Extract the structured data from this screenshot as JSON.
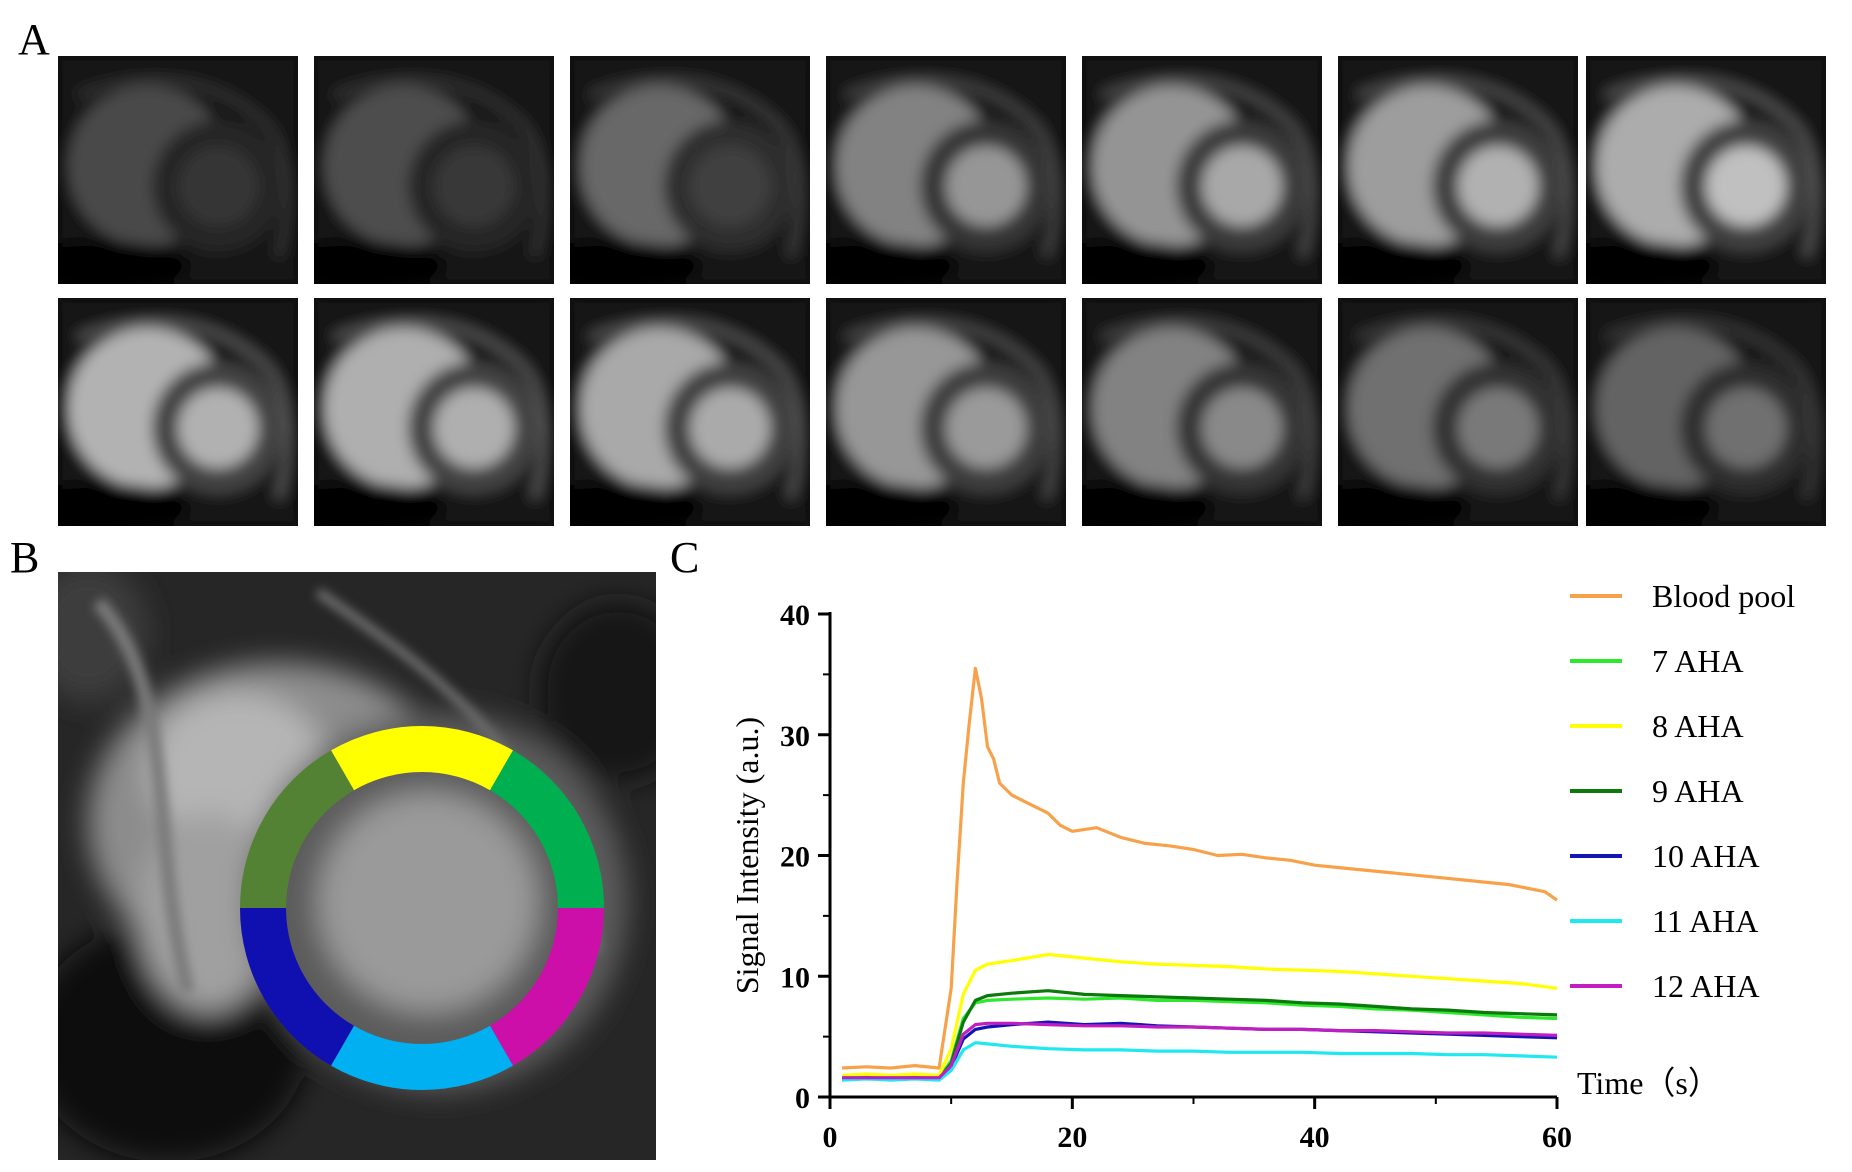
{
  "panels": {
    "a": "A",
    "b": "B",
    "c": "C"
  },
  "panel_a": {
    "frame_brightness": [
      0.22,
      0.25,
      0.42,
      0.6,
      0.72,
      0.78,
      0.88,
      0.92,
      0.9,
      0.86,
      0.74,
      0.6,
      0.48,
      0.4
    ]
  },
  "panel_b": {
    "segments": [
      {
        "name": "yellow",
        "color": "#ffff00"
      },
      {
        "name": "green",
        "color": "#00b050"
      },
      {
        "name": "magenta",
        "color": "#cc0fa8"
      },
      {
        "name": "light-blue",
        "color": "#00b0f0"
      },
      {
        "name": "blue",
        "color": "#1010b0"
      },
      {
        "name": "olive-green",
        "color": "#548235"
      }
    ]
  },
  "chart_data": {
    "type": "line",
    "title": "",
    "xlabel": "Time（s）",
    "ylabel": "Signal Intensity (a.u.)",
    "xlim": [
      0,
      60
    ],
    "ylim": [
      0,
      40
    ],
    "xticks": [
      "0",
      "20",
      "40",
      "60"
    ],
    "yticks": [
      "0",
      "10",
      "20",
      "30",
      "40"
    ],
    "legend_position": "right",
    "series": [
      {
        "name": "Blood pool",
        "color": "#f7a24a",
        "x": [
          1,
          3,
          5,
          7,
          9,
          10,
          10.5,
          11,
          11.5,
          12,
          12.5,
          13,
          13.5,
          14,
          15,
          16,
          17,
          18,
          19,
          20,
          22,
          24,
          26,
          28,
          30,
          32,
          34,
          36,
          38,
          40,
          42,
          44,
          46,
          48,
          50,
          52,
          54,
          56,
          58,
          59,
          60
        ],
        "y": [
          2.4,
          2.5,
          2.4,
          2.6,
          2.4,
          9,
          18,
          26,
          31,
          35.5,
          33,
          29,
          28,
          26,
          25,
          24.5,
          24,
          23.5,
          22.5,
          22,
          22.3,
          21.5,
          21,
          20.8,
          20.5,
          20,
          20.1,
          19.8,
          19.6,
          19.2,
          19,
          18.8,
          18.6,
          18.4,
          18.2,
          18,
          17.8,
          17.6,
          17.2,
          17,
          16.3
        ]
      },
      {
        "name": "7 AHA",
        "color": "#2de82d",
        "x": [
          1,
          3,
          5,
          7,
          9,
          10,
          11,
          12,
          13,
          15,
          18,
          21,
          24,
          27,
          30,
          33,
          36,
          39,
          42,
          45,
          48,
          51,
          54,
          57,
          60
        ],
        "y": [
          1.6,
          1.7,
          1.6,
          1.7,
          1.6,
          3,
          6.5,
          7.8,
          8,
          8.1,
          8.2,
          8.1,
          8.2,
          8,
          8,
          7.9,
          7.8,
          7.6,
          7.5,
          7.3,
          7.2,
          7,
          6.8,
          6.6,
          6.5
        ]
      },
      {
        "name": "8 AHA",
        "color": "#ffff00",
        "x": [
          1,
          3,
          5,
          7,
          9,
          10,
          11,
          12,
          13,
          15,
          18,
          21,
          24,
          27,
          30,
          33,
          36,
          39,
          42,
          45,
          48,
          51,
          54,
          57,
          60
        ],
        "y": [
          1.8,
          1.9,
          1.8,
          1.9,
          1.8,
          4,
          8.5,
          10.5,
          11,
          11.3,
          11.8,
          11.5,
          11.2,
          11,
          10.9,
          10.8,
          10.6,
          10.5,
          10.4,
          10.2,
          10,
          9.8,
          9.6,
          9.4,
          9
        ]
      },
      {
        "name": "9 AHA",
        "color": "#0b7a0b",
        "x": [
          1,
          3,
          5,
          7,
          9,
          10,
          11,
          12,
          13,
          15,
          18,
          21,
          24,
          27,
          30,
          33,
          36,
          39,
          42,
          45,
          48,
          51,
          54,
          57,
          60
        ],
        "y": [
          1.5,
          1.6,
          1.5,
          1.6,
          1.5,
          2.8,
          6.2,
          8,
          8.4,
          8.6,
          8.8,
          8.5,
          8.4,
          8.3,
          8.2,
          8.1,
          8,
          7.8,
          7.7,
          7.5,
          7.3,
          7.2,
          7,
          6.9,
          6.8
        ]
      },
      {
        "name": "10 AHA",
        "color": "#1414b4",
        "x": [
          1,
          3,
          5,
          7,
          9,
          10,
          11,
          12,
          13,
          15,
          18,
          21,
          24,
          27,
          30,
          33,
          36,
          39,
          42,
          45,
          48,
          51,
          54,
          57,
          60
        ],
        "y": [
          1.5,
          1.5,
          1.5,
          1.5,
          1.5,
          2.5,
          4.8,
          5.6,
          5.8,
          6,
          6.2,
          6,
          6.1,
          5.9,
          5.8,
          5.7,
          5.6,
          5.6,
          5.5,
          5.4,
          5.3,
          5.2,
          5.1,
          5,
          4.9
        ]
      },
      {
        "name": "11 AHA",
        "color": "#1ee8f0",
        "x": [
          1,
          3,
          5,
          7,
          9,
          10,
          11,
          12,
          13,
          15,
          18,
          21,
          24,
          27,
          30,
          33,
          36,
          39,
          42,
          45,
          48,
          51,
          54,
          57,
          60
        ],
        "y": [
          1.4,
          1.5,
          1.4,
          1.5,
          1.4,
          2.2,
          3.9,
          4.5,
          4.4,
          4.2,
          4,
          3.9,
          3.9,
          3.8,
          3.8,
          3.7,
          3.7,
          3.7,
          3.6,
          3.6,
          3.6,
          3.5,
          3.5,
          3.4,
          3.3
        ]
      },
      {
        "name": "12 AHA",
        "color": "#c01ec0",
        "x": [
          1,
          3,
          5,
          7,
          9,
          10,
          11,
          12,
          13,
          15,
          18,
          21,
          24,
          27,
          30,
          33,
          36,
          39,
          42,
          45,
          48,
          51,
          54,
          57,
          60
        ],
        "y": [
          1.6,
          1.6,
          1.6,
          1.6,
          1.6,
          2.6,
          5.2,
          6,
          6.1,
          6.1,
          6,
          5.9,
          5.9,
          5.8,
          5.8,
          5.7,
          5.6,
          5.6,
          5.5,
          5.5,
          5.4,
          5.3,
          5.3,
          5.2,
          5.1
        ]
      }
    ]
  }
}
